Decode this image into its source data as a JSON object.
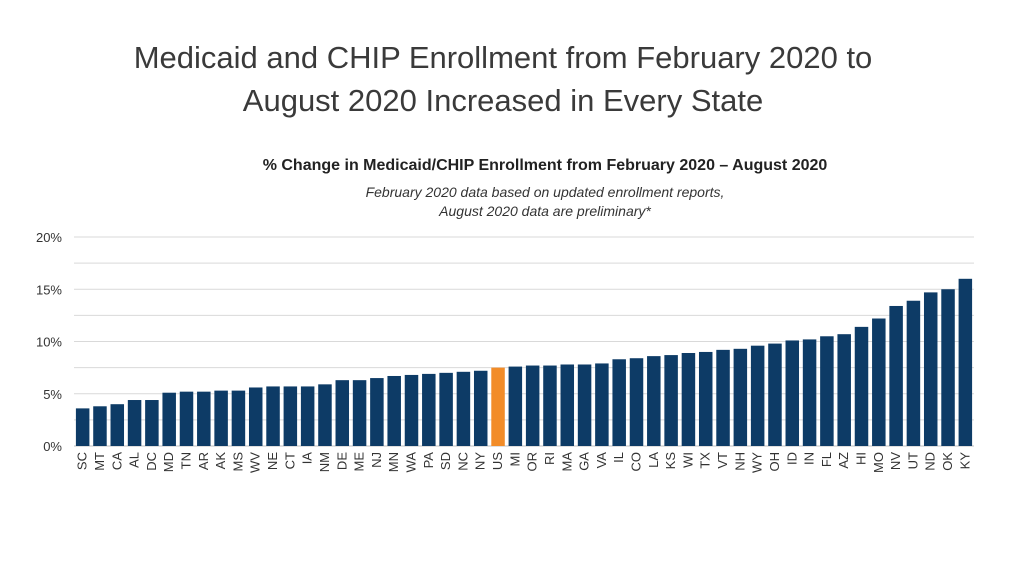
{
  "slide": {
    "title_line1": "Medicaid and CHIP Enrollment from February 2020 to",
    "title_line2": "August 2020 Increased in Every State"
  },
  "chart_data": {
    "type": "bar",
    "title": "% Change in Medicaid/CHIP Enrollment from February 2020 – August 2020",
    "subtitle_line1": "February 2020 data based on updated enrollment reports,",
    "subtitle_line2": "August 2020 data are preliminary*",
    "xlabel": "",
    "ylabel": "",
    "ylim": [
      0,
      20
    ],
    "yticks": [
      0,
      5,
      10,
      15,
      20
    ],
    "ytick_labels": [
      "0%",
      "5%",
      "10%",
      "15%",
      "20%"
    ],
    "grid": true,
    "legend": "none",
    "colors": {
      "state": "#0d3b66",
      "highlight": "#f28c28",
      "grid": "#d9d9d9"
    },
    "highlight_category": "US",
    "categories": [
      "SC",
      "MT",
      "CA",
      "AL",
      "DC",
      "MD",
      "TN",
      "AR",
      "AK",
      "MS",
      "WV",
      "NE",
      "CT",
      "IA",
      "NM",
      "DE",
      "ME",
      "NJ",
      "MN",
      "WA",
      "PA",
      "SD",
      "NC",
      "NY",
      "US",
      "MI",
      "OR",
      "RI",
      "MA",
      "GA",
      "VA",
      "IL",
      "CO",
      "LA",
      "KS",
      "WI",
      "TX",
      "VT",
      "NH",
      "WY",
      "OH",
      "ID",
      "IN",
      "FL",
      "AZ",
      "HI",
      "MO",
      "NV",
      "UT",
      "ND",
      "OK",
      "KY"
    ],
    "values": [
      3.6,
      3.8,
      4.0,
      4.4,
      4.4,
      5.1,
      5.2,
      5.2,
      5.3,
      5.3,
      5.6,
      5.7,
      5.7,
      5.7,
      5.9,
      6.3,
      6.3,
      6.5,
      6.7,
      6.8,
      6.9,
      7.0,
      7.1,
      7.2,
      7.5,
      7.6,
      7.7,
      7.7,
      7.8,
      7.8,
      7.9,
      8.3,
      8.4,
      8.6,
      8.7,
      8.9,
      9.0,
      9.2,
      9.3,
      9.6,
      9.8,
      10.1,
      10.2,
      10.5,
      10.7,
      11.4,
      12.2,
      13.4,
      13.9,
      14.7,
      15.0,
      16.0
    ]
  }
}
